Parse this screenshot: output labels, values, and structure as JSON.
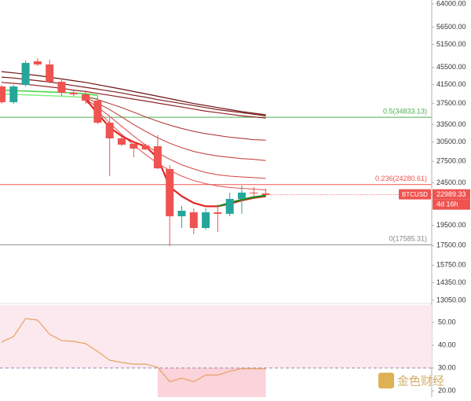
{
  "chart_data": [
    {
      "type": "candlestick",
      "log_scale": true,
      "grid": false,
      "ylim": [
        12880,
        65360
      ],
      "yticks": [
        {
          "value": 64000,
          "label": "64000.00"
        },
        {
          "value": 56500,
          "label": "56500.00"
        },
        {
          "value": 51500,
          "label": "51500.00"
        },
        {
          "value": 45500,
          "label": "45500.00"
        },
        {
          "value": 41500,
          "label": "41500.00"
        },
        {
          "value": 37500,
          "label": "37500.00"
        },
        {
          "value": 33500,
          "label": "33500.00"
        },
        {
          "value": 30500,
          "label": "30500.00"
        },
        {
          "value": 27500,
          "label": "27500.00"
        },
        {
          "value": 24500,
          "label": "24500.00"
        },
        {
          "value": 19500,
          "label": "19500.00"
        },
        {
          "value": 17500,
          "label": "17500.00"
        },
        {
          "value": 15750,
          "label": "15750.00"
        },
        {
          "value": 14350,
          "label": "14350.00"
        },
        {
          "value": 13050,
          "label": "13050.00"
        }
      ],
      "up_color": "#26a69a",
      "down_color": "#ef5350",
      "open": [
        41090,
        37770,
        41440,
        47030,
        46250,
        42150,
        39730,
        39400,
        38090,
        33840,
        31110,
        30200,
        29950,
        29820,
        26390,
        20480,
        20920,
        19230,
        20920,
        20750,
        22480,
        23250,
        23150
      ],
      "high": [
        41440,
        41440,
        47230,
        47835,
        47430,
        42870,
        40240,
        40240,
        39060,
        34710,
        31640,
        30590,
        30200,
        31640,
        26940,
        21640,
        21370,
        21370,
        21830,
        23250,
        24150,
        23950,
        23750
      ],
      "low": [
        37450,
        37450,
        41090,
        45860,
        41790,
        39060,
        39060,
        37450,
        33560,
        25400,
        29820,
        28110,
        29200,
        26390,
        17450,
        19230,
        18590,
        19060,
        18830,
        20480,
        20750,
        22760,
        22760
      ],
      "close": [
        37770,
        41090,
        46640,
        46250,
        42150,
        39730,
        39400,
        38090,
        33840,
        31110,
        30080,
        29450,
        29320,
        26490,
        20480,
        21100,
        19230,
        20920,
        20750,
        22480,
        23250,
        23150,
        22960
      ],
      "lines": [
        {
          "color": "#6b1414",
          "width": 1.2,
          "values": [
            44500,
            44200,
            43900,
            43600,
            43200,
            42800,
            42400,
            42000,
            41500,
            41000,
            40500,
            40000,
            39500,
            39000,
            38500,
            38000,
            37500,
            37100,
            36700,
            36300,
            35900,
            35600,
            35300
          ]
        },
        {
          "color": "#7e1c1c",
          "width": 1.2,
          "values": [
            43200,
            43000,
            42700,
            42400,
            42100,
            41700,
            41300,
            40900,
            40500,
            40100,
            39700,
            39200,
            38800,
            38300,
            37900,
            37500,
            37100,
            36700,
            36300,
            36000,
            35700,
            35400,
            35100
          ]
        },
        {
          "color": "#922626",
          "width": 1.2,
          "values": [
            42000,
            41800,
            41600,
            41300,
            41000,
            40700,
            40300,
            40000,
            39600,
            39200,
            38800,
            38400,
            38000,
            37600,
            37200,
            36800,
            36400,
            36000,
            35700,
            35400,
            35100,
            34900,
            34700
          ]
        },
        {
          "color": "#3ed43e",
          "width": 1.5,
          "values": [
            40300,
            40200,
            40100,
            40000,
            39900,
            39800,
            39700,
            39500,
            39200,
            null,
            null,
            null,
            null,
            null,
            null,
            null,
            null,
            null,
            null,
            null,
            null,
            null,
            null
          ]
        },
        {
          "color": "#7ef07e",
          "width": 1.5,
          "values": [
            39500,
            39400,
            39300,
            39200,
            39100,
            39000,
            38900,
            38700,
            38500,
            null,
            null,
            null,
            null,
            null,
            null,
            null,
            null,
            null,
            null,
            null,
            null,
            null,
            null
          ]
        },
        {
          "color": "#a82b2b",
          "width": 1,
          "values": [
            null,
            null,
            null,
            null,
            null,
            null,
            null,
            39000,
            38300,
            37500,
            36700,
            35800,
            34900,
            34100,
            33400,
            32800,
            32300,
            31900,
            31600,
            31300,
            31100,
            30900,
            30800
          ]
        },
        {
          "color": "#c23636",
          "width": 1,
          "values": [
            null,
            null,
            null,
            null,
            null,
            null,
            null,
            38700,
            37600,
            36300,
            34900,
            33500,
            32300,
            31200,
            30300,
            29600,
            29000,
            28600,
            28300,
            28100,
            27900,
            27800,
            27600
          ]
        },
        {
          "color": "#d44242",
          "width": 1,
          "values": [
            null,
            null,
            null,
            null,
            null,
            null,
            null,
            38400,
            36800,
            35000,
            33200,
            31500,
            30000,
            28800,
            27800,
            27000,
            26400,
            25900,
            25600,
            25400,
            25300,
            25200,
            25100
          ]
        },
        {
          "color": "#e05050",
          "width": 1,
          "values": [
            null,
            null,
            null,
            null,
            null,
            null,
            null,
            38000,
            36000,
            33800,
            31800,
            30000,
            28500,
            27200,
            26200,
            25400,
            24800,
            24400,
            24100,
            23900,
            23800,
            23700,
            23600
          ]
        },
        {
          "color": "#e02424",
          "width": 2.2,
          "values": [
            null,
            null,
            null,
            null,
            null,
            null,
            null,
            38500,
            35500,
            33000,
            31500,
            30500,
            29800,
            28000,
            24000,
            22800,
            22000,
            21600,
            21600,
            21900,
            22300,
            22600,
            22800
          ]
        },
        {
          "color": "#1b8a1b",
          "width": 2.2,
          "values": [
            null,
            null,
            null,
            null,
            null,
            null,
            null,
            null,
            null,
            null,
            null,
            null,
            null,
            null,
            null,
            null,
            null,
            null,
            21600,
            22000,
            22400,
            22700,
            22900
          ]
        }
      ],
      "levels": [
        {
          "label": "0.5(34833.13)",
          "value": 34833.13,
          "color": "#4caf50"
        },
        {
          "label": "0.236(24280.61)",
          "value": 24280.61,
          "color": "#ef5350"
        },
        {
          "label": "0(17585.31)",
          "value": 17585.31,
          "color": "#888888"
        }
      ],
      "last_price": {
        "symbol": "BTCUSD",
        "value": 22989.33,
        "countdown": "4d 16h",
        "color": "#ef5350"
      }
    },
    {
      "type": "line",
      "color": "#e8a060",
      "ylim": [
        17.24,
        57.59
      ],
      "yticks": [
        {
          "value": 50,
          "label": "50.00"
        },
        {
          "value": 40,
          "label": "40.00"
        },
        {
          "value": 30,
          "label": "30.00"
        },
        {
          "value": 20,
          "label": "20.00"
        }
      ],
      "values": [
        41.4,
        43.8,
        51.7,
        51,
        44.8,
        42,
        41.7,
        40.7,
        37.2,
        33.4,
        32.4,
        31.7,
        31.7,
        30.3,
        24,
        25.5,
        24,
        26.9,
        26.9,
        28.6,
        29.7,
        29.7,
        29.7
      ],
      "band": [
        30,
        57.59
      ],
      "band_color": "#fbe9ef",
      "low_fill_color": "#fbd3da"
    }
  ],
  "watermark": "金色财经"
}
